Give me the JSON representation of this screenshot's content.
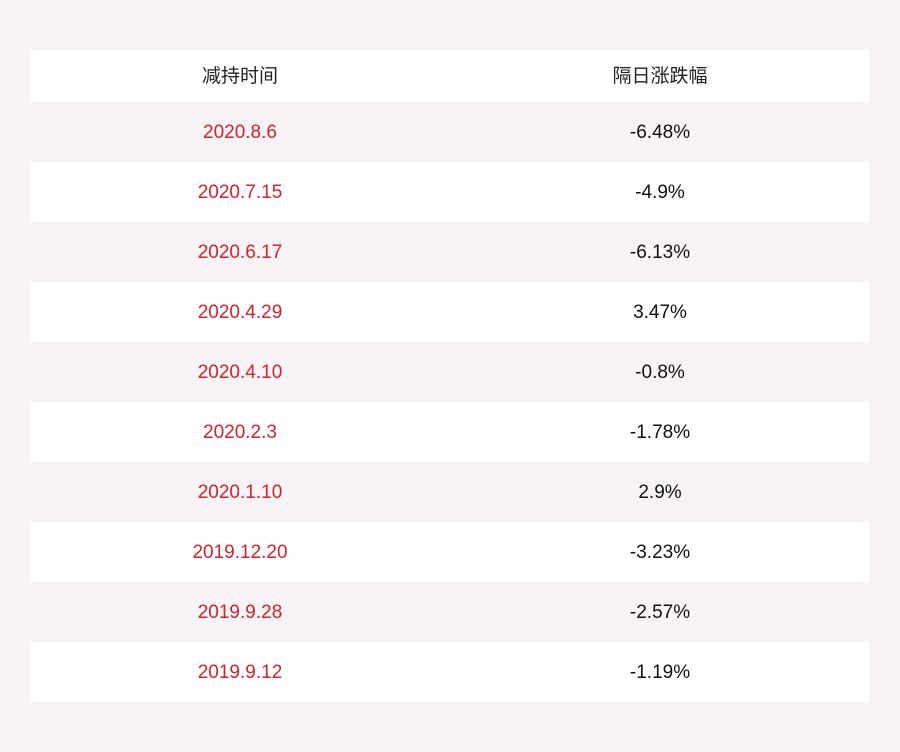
{
  "header": {
    "col_date": "减持时间",
    "col_change": "隔日涨跌幅"
  },
  "rows": [
    {
      "date": "2020.8.6",
      "change": "-6.48%"
    },
    {
      "date": "2020.7.15",
      "change": "-4.9%"
    },
    {
      "date": "2020.6.17",
      "change": "-6.13%"
    },
    {
      "date": "2020.4.29",
      "change": "3.47%"
    },
    {
      "date": "2020.4.10",
      "change": "-0.8%"
    },
    {
      "date": "2020.2.3",
      "change": "-1.78%"
    },
    {
      "date": "2020.1.10",
      "change": "2.9%"
    },
    {
      "date": "2019.12.20",
      "change": "-3.23%"
    },
    {
      "date": "2019.9.28",
      "change": "-2.57%"
    },
    {
      "date": "2019.9.12",
      "change": "-1.19%"
    }
  ],
  "colors": {
    "date_text": "#d0232f",
    "value_text": "#111111",
    "page_background": "#f8f3f4",
    "row_white": "#ffffff"
  }
}
